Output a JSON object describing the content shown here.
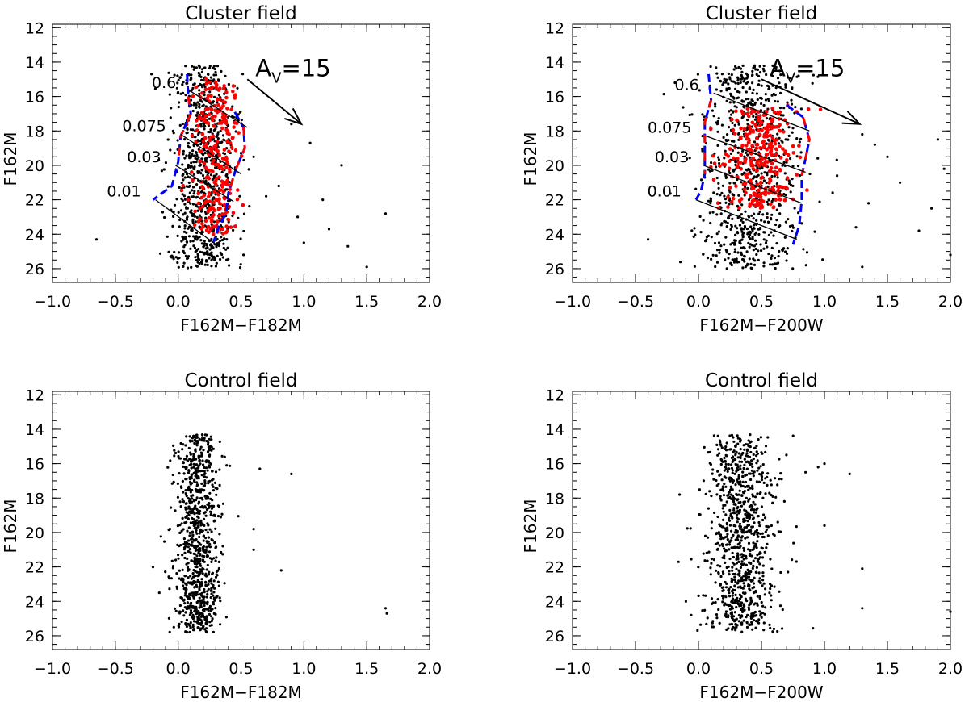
{
  "chart_data": [
    {
      "type": "scatter",
      "title": "Cluster field",
      "xlabel": "F162M−F182M",
      "ylabel": "F162M",
      "xlim": [
        -1.0,
        2.0
      ],
      "ylim": [
        26.8,
        11.8
      ],
      "y_inverted": true,
      "grid": false,
      "xticks": [
        "−1.0",
        "−0.5",
        "0.0",
        "0.5",
        "1.0",
        "1.5",
        "2.0"
      ],
      "yticks": [
        "12",
        "14",
        "16",
        "18",
        "20",
        "22",
        "24",
        "26"
      ],
      "series": [
        {
          "role": "field-stars",
          "color": "#000000",
          "spread": {
            "x_center": 0.2,
            "x_sigma": 0.13,
            "y_range": [
              14.2,
              26.0
            ],
            "count": 820
          }
        },
        {
          "role": "selected-members",
          "color": "#ff0000",
          "spread": {
            "x_center": 0.3,
            "x_sigma": 0.09,
            "y_range": [
              15.0,
              24.0
            ],
            "count": 260
          }
        }
      ],
      "outliers": [
        [
          -0.65,
          24.3
        ],
        [
          0.9,
          17.6
        ],
        [
          0.8,
          21.2
        ],
        [
          0.95,
          23.0
        ],
        [
          1.05,
          18.7
        ],
        [
          1.15,
          22.0
        ],
        [
          1.2,
          23.7
        ],
        [
          1.3,
          20.0
        ],
        [
          1.35,
          24.7
        ],
        [
          1.5,
          25.9
        ],
        [
          1.65,
          22.8
        ],
        [
          0.7,
          21.8
        ],
        [
          0.6,
          19.5
        ],
        [
          1.0,
          24.5
        ]
      ],
      "isochrone_left": [
        [
          0.07,
          14.7
        ],
        [
          0.08,
          16.0
        ],
        [
          0.1,
          17.0
        ],
        [
          0.02,
          18.3
        ],
        [
          0.0,
          19.8
        ],
        [
          -0.05,
          21.2
        ],
        [
          -0.2,
          22.0
        ]
      ],
      "isochrone_right": [
        [
          0.45,
          16.9
        ],
        [
          0.52,
          17.8
        ],
        [
          0.53,
          19.0
        ],
        [
          0.46,
          20.2
        ],
        [
          0.4,
          21.6
        ],
        [
          0.38,
          22.8
        ],
        [
          0.32,
          23.6
        ],
        [
          0.28,
          24.5
        ]
      ],
      "reddening_lines": [
        {
          "label": "0.6",
          "from": [
            0.1,
            15.7
          ],
          "to": [
            0.55,
            17.8
          ]
        },
        {
          "label": "0.075",
          "from": [
            0.02,
            18.2
          ],
          "to": [
            0.5,
            20.5
          ]
        },
        {
          "label": "0.03",
          "from": [
            -0.02,
            20.0
          ],
          "to": [
            0.44,
            22.1
          ]
        },
        {
          "label": "0.01",
          "from": [
            -0.18,
            22.0
          ],
          "to": [
            0.3,
            24.6
          ]
        }
      ],
      "arrow": {
        "from": [
          0.55,
          15.0
        ],
        "to": [
          0.98,
          17.6
        ]
      },
      "av_label": "A",
      "av_sub": "V",
      "av_value": "=15"
    },
    {
      "type": "scatter",
      "title": "Cluster field",
      "xlabel": "F162M−F200W",
      "ylabel": "F162M",
      "xlim": [
        -1.0,
        2.0
      ],
      "ylim": [
        26.8,
        11.8
      ],
      "y_inverted": true,
      "grid": false,
      "xticks": [
        "−1.0",
        "−0.5",
        "0.0",
        "0.5",
        "1.0",
        "1.5",
        "2.0"
      ],
      "yticks": [
        "12",
        "14",
        "16",
        "18",
        "20",
        "22",
        "24",
        "26"
      ],
      "series": [
        {
          "role": "field-stars",
          "color": "#000000",
          "spread": {
            "x_center": 0.4,
            "x_sigma": 0.2,
            "y_range": [
              14.2,
              26.0
            ],
            "count": 820
          }
        },
        {
          "role": "selected-members",
          "color": "#ff0000",
          "spread": {
            "x_center": 0.5,
            "x_sigma": 0.15,
            "y_range": [
              16.5,
              22.5
            ],
            "count": 280
          }
        }
      ],
      "outliers": [
        [
          -0.4,
          24.3
        ],
        [
          1.3,
          18.2
        ],
        [
          1.4,
          18.8
        ],
        [
          1.5,
          19.5
        ],
        [
          1.6,
          21.0
        ],
        [
          1.75,
          23.8
        ],
        [
          1.85,
          22.5
        ],
        [
          1.9,
          18.5
        ],
        [
          1.95,
          20.2
        ],
        [
          2.0,
          25.2
        ],
        [
          1.25,
          23.6
        ],
        [
          1.1,
          20.6
        ],
        [
          1.35,
          22.2
        ],
        [
          1.3,
          25.9
        ]
      ],
      "isochrone_left": [
        [
          0.08,
          14.7
        ],
        [
          0.1,
          16.2
        ],
        [
          0.05,
          17.5
        ],
        [
          0.05,
          19.0
        ],
        [
          0.05,
          20.5
        ],
        [
          0.02,
          21.5
        ],
        [
          -0.02,
          22.0
        ]
      ],
      "isochrone_right": [
        [
          0.7,
          16.5
        ],
        [
          0.83,
          17.2
        ],
        [
          0.88,
          18.5
        ],
        [
          0.85,
          19.6
        ],
        [
          0.82,
          20.6
        ],
        [
          0.82,
          22.0
        ],
        [
          0.8,
          23.5
        ],
        [
          0.75,
          24.6
        ]
      ],
      "reddening_lines": [
        {
          "label": "0.6",
          "from": [
            0.12,
            15.8
          ],
          "to": [
            0.88,
            18.0
          ]
        },
        {
          "label": "0.075",
          "from": [
            0.06,
            18.3
          ],
          "to": [
            0.85,
            20.4
          ]
        },
        {
          "label": "0.03",
          "from": [
            0.04,
            20.0
          ],
          "to": [
            0.82,
            22.2
          ]
        },
        {
          "label": "0.01",
          "from": [
            -0.02,
            22.0
          ],
          "to": [
            0.78,
            24.3
          ]
        }
      ],
      "arrow": {
        "from": [
          0.5,
          15.0
        ],
        "to": [
          1.28,
          17.6
        ]
      },
      "av_label": "A",
      "av_sub": "V",
      "av_value": "=15"
    },
    {
      "type": "scatter",
      "title": "Control field",
      "xlabel": "F162M−F182M",
      "ylabel": "F162M",
      "xlim": [
        -1.0,
        2.0
      ],
      "ylim": [
        26.8,
        11.8
      ],
      "y_inverted": true,
      "grid": false,
      "xticks": [
        "−1.0",
        "−0.5",
        "0.0",
        "0.5",
        "1.0",
        "1.5",
        "2.0"
      ],
      "yticks": [
        "12",
        "14",
        "16",
        "18",
        "20",
        "22",
        "24",
        "26"
      ],
      "series": [
        {
          "role": "field-stars",
          "color": "#000000",
          "spread": {
            "x_center": 0.16,
            "x_sigma": 0.09,
            "y_range": [
              14.3,
              25.8
            ],
            "count": 900
          }
        }
      ],
      "outliers": [
        [
          0.9,
          16.6
        ],
        [
          0.65,
          16.3
        ],
        [
          0.6,
          19.8
        ],
        [
          0.82,
          22.2
        ],
        [
          1.65,
          24.4
        ],
        [
          1.66,
          24.7
        ],
        [
          -0.2,
          22.0
        ],
        [
          -0.15,
          23.5
        ],
        [
          0.6,
          21.0
        ]
      ]
    },
    {
      "type": "scatter",
      "title": "Control field",
      "xlabel": "F162M−F200W",
      "ylabel": "F162M",
      "xlim": [
        -1.0,
        2.0
      ],
      "ylim": [
        26.8,
        11.8
      ],
      "y_inverted": true,
      "grid": false,
      "xticks": [
        "−1.0",
        "−0.5",
        "0.0",
        "0.5",
        "1.0",
        "1.5",
        "2.0"
      ],
      "yticks": [
        "12",
        "14",
        "16",
        "18",
        "20",
        "22",
        "24",
        "26"
      ],
      "series": [
        {
          "role": "field-stars",
          "color": "#000000",
          "spread": {
            "x_center": 0.33,
            "x_sigma": 0.14,
            "y_range": [
              14.3,
              25.8
            ],
            "count": 900
          }
        }
      ],
      "outliers": [
        [
          -0.15,
          17.8
        ],
        [
          1.2,
          16.6
        ],
        [
          1.0,
          16.0
        ],
        [
          0.95,
          16.2
        ],
        [
          1.0,
          19.6
        ],
        [
          1.3,
          22.1
        ],
        [
          1.3,
          24.4
        ],
        [
          2.0,
          24.6
        ],
        [
          -0.1,
          24.0
        ],
        [
          0.85,
          16.5
        ]
      ]
    }
  ]
}
